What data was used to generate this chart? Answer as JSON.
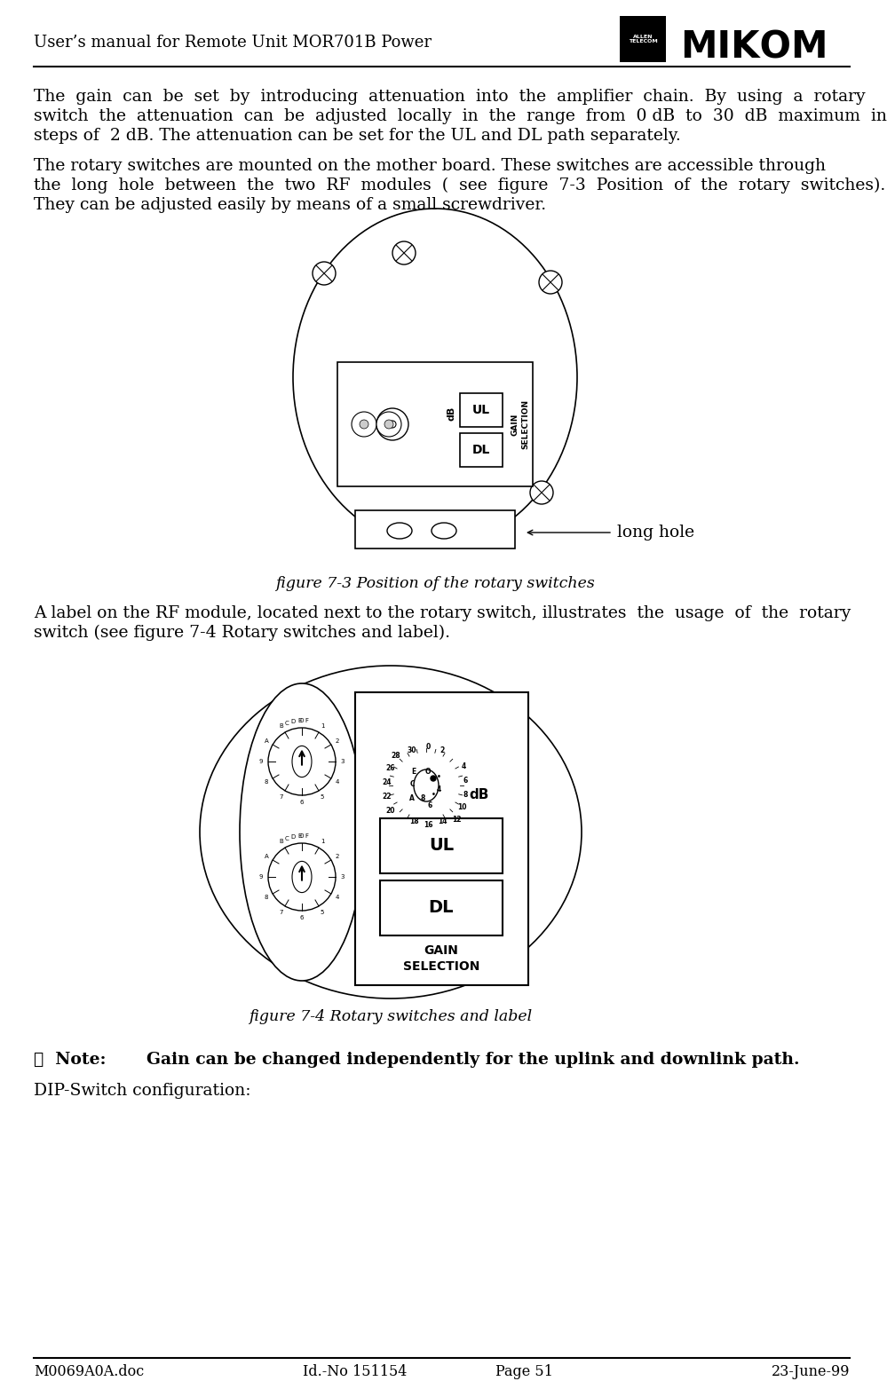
{
  "bg_color": "#ffffff",
  "text_color": "#000000",
  "header_title": "User’s manual for Remote Unit MOR701B Power",
  "footer_left": "M0069A0A.doc",
  "footer_center": "Id.-No 151154",
  "footer_page": "Page 51",
  "footer_date": "23-June-99",
  "para1_line1": "The  gain  can  be  set  by  introducing  attenuation  into  the  amplifier  chain.  By  using  a  rotary",
  "para1_line2": "switch  the  attenuation  can  be  adjusted  locally  in  the  range  from  0 dB  to  30  dB  maximum  in",
  "para1_line3": "steps of  2 dB. The attenuation can be set for the UL and DL path separately.",
  "para2_line1": "The rotary switches are mounted on the mother board. These switches are accessible through",
  "para2_line2": "the  long  hole  between  the  two  RF  modules  (  see  figure  7-3  Position  of  the  rotary  switches).",
  "para2_line3": "They can be adjusted easily by means of a small screwdriver.",
  "fig1_caption": "figure 7-3 Position of the rotary switches",
  "fig1_longholetext": "long hole",
  "para3_line1": "A label on the RF module, located next to the rotary switch, illustrates  the  usage  of  the  rotary",
  "para3_line2": "switch (see figure 7-4 Rotary switches and label).",
  "fig2_caption": "figure 7-4 Rotary switches and label",
  "note_symbol": "☟",
  "note_label": "Note:",
  "note_body": "Gain can be changed independently for the uplink and downlink path.",
  "para_final": "DIP-Switch configuration:",
  "fs_body": 13.5,
  "fs_header": 13,
  "fs_footer": 11.5,
  "fs_caption": 12.5,
  "fs_note": 13.5
}
